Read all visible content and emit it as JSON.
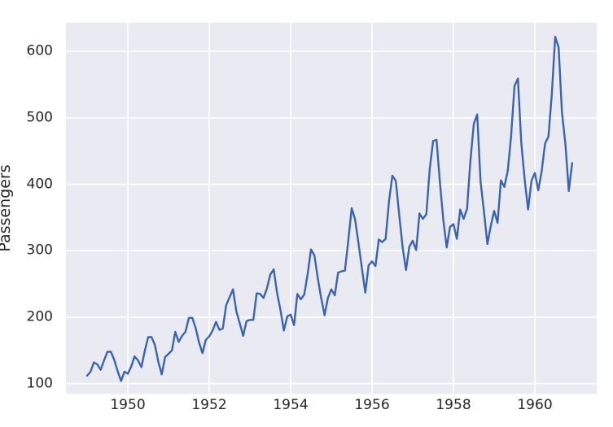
{
  "chart_data": {
    "type": "line",
    "title": "",
    "xlabel": "",
    "ylabel": "Passengers",
    "legend_position": "none",
    "grid": true,
    "series": [
      {
        "name": "passengers",
        "start_year": 1949,
        "frequency": "monthly",
        "values": [
          112,
          118,
          132,
          129,
          121,
          135,
          148,
          148,
          136,
          119,
          104,
          118,
          115,
          126,
          141,
          135,
          125,
          149,
          170,
          170,
          158,
          133,
          114,
          140,
          145,
          150,
          178,
          163,
          172,
          178,
          199,
          199,
          184,
          162,
          146,
          166,
          171,
          180,
          193,
          181,
          183,
          218,
          230,
          242,
          209,
          191,
          172,
          194,
          196,
          196,
          236,
          235,
          229,
          243,
          264,
          272,
          237,
          211,
          180,
          201,
          204,
          188,
          235,
          227,
          234,
          264,
          302,
          293,
          259,
          229,
          203,
          229,
          242,
          233,
          267,
          269,
          270,
          315,
          364,
          347,
          312,
          274,
          237,
          278,
          284,
          277,
          317,
          313,
          318,
          374,
          413,
          405,
          355,
          306,
          271,
          306,
          315,
          301,
          356,
          348,
          355,
          422,
          465,
          467,
          404,
          347,
          305,
          336,
          340,
          318,
          362,
          348,
          363,
          435,
          491,
          505,
          404,
          359,
          310,
          337,
          360,
          342,
          406,
          396,
          420,
          472,
          548,
          559,
          463,
          407,
          362,
          405,
          417,
          391,
          419,
          461,
          472,
          535,
          622,
          606,
          508,
          461,
          390,
          432
        ]
      }
    ],
    "xticks": [
      1950,
      1952,
      1954,
      1956,
      1958,
      1960
    ],
    "yticks": [
      100,
      200,
      300,
      400,
      500,
      600
    ],
    "xlim": [
      1948.48,
      1961.52
    ],
    "ylim": [
      85,
      643
    ],
    "line_color": "#3b64b0",
    "line_width": 2.4,
    "plot_bg_color": "#eaeaf2",
    "grid_color": "#ffffff",
    "figure_bg_color": "#ffffff",
    "tick_label_color": "#262626"
  }
}
